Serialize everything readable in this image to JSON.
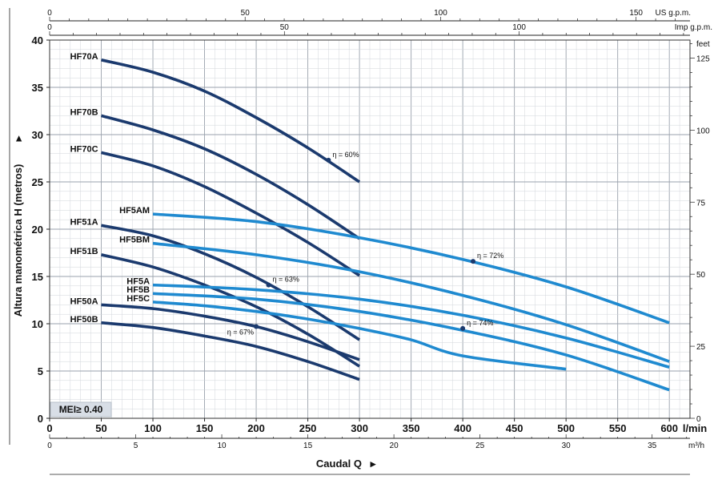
{
  "chart_data": {
    "type": "line",
    "xlabel": "Caudal Q",
    "ylabel": "Altura manométrica H (metros)",
    "xlim": [
      0,
      620
    ],
    "ylim": [
      0,
      40
    ],
    "grid": true,
    "x_ticks": [
      0,
      50,
      100,
      150,
      200,
      250,
      300,
      350,
      400,
      450,
      500,
      550,
      600
    ],
    "x_unit": "l/min",
    "y_ticks": [
      0,
      5,
      10,
      15,
      20,
      25,
      30,
      35,
      40
    ],
    "secondary_axes": {
      "m3h": {
        "unit": "m³/h",
        "ticks": [
          0,
          5,
          10,
          15,
          20,
          25,
          30,
          35
        ]
      },
      "us_gpm": {
        "unit": "US g.p.m.",
        "ticks": [
          0,
          50,
          100,
          150
        ]
      },
      "imp_gpm": {
        "unit": "Imp g.p.m.",
        "ticks": [
          0,
          50,
          100
        ]
      },
      "feet": {
        "unit": "feet",
        "ticks": [
          0,
          25,
          50,
          75,
          100,
          125
        ]
      }
    },
    "series": [
      {
        "name": "HF70A",
        "color": "#1b3a6e",
        "points": [
          [
            50,
            37.9
          ],
          [
            100,
            36.6
          ],
          [
            150,
            34.6
          ],
          [
            200,
            31.8
          ],
          [
            250,
            28.6
          ],
          [
            300,
            25.0
          ]
        ]
      },
      {
        "name": "HF70B",
        "color": "#1b3a6e",
        "points": [
          [
            50,
            32.0
          ],
          [
            100,
            30.5
          ],
          [
            150,
            28.5
          ],
          [
            200,
            25.8
          ],
          [
            250,
            22.6
          ],
          [
            300,
            19.0
          ]
        ]
      },
      {
        "name": "HF70C",
        "color": "#1b3a6e",
        "points": [
          [
            50,
            28.1
          ],
          [
            100,
            26.7
          ],
          [
            150,
            24.5
          ],
          [
            200,
            21.7
          ],
          [
            250,
            18.6
          ],
          [
            300,
            15.1
          ]
        ]
      },
      {
        "name": "HF51A",
        "color": "#1b3a6e",
        "points": [
          [
            50,
            20.4
          ],
          [
            100,
            19.3
          ],
          [
            150,
            17.4
          ],
          [
            200,
            14.9
          ],
          [
            250,
            11.8
          ],
          [
            300,
            8.3
          ]
        ]
      },
      {
        "name": "HF51B",
        "color": "#1b3a6e",
        "points": [
          [
            50,
            17.3
          ],
          [
            100,
            16.0
          ],
          [
            150,
            14.1
          ],
          [
            200,
            11.8
          ],
          [
            250,
            8.9
          ],
          [
            300,
            5.5
          ]
        ]
      },
      {
        "name": "HF50A",
        "color": "#1b3a6e",
        "points": [
          [
            50,
            12.0
          ],
          [
            100,
            11.6
          ],
          [
            150,
            10.8
          ],
          [
            200,
            9.7
          ],
          [
            250,
            8.1
          ],
          [
            300,
            6.2
          ]
        ]
      },
      {
        "name": "HF50B",
        "color": "#1b3a6e",
        "points": [
          [
            50,
            10.1
          ],
          [
            100,
            9.6
          ],
          [
            150,
            8.7
          ],
          [
            200,
            7.6
          ],
          [
            250,
            6.0
          ],
          [
            300,
            4.1
          ]
        ]
      },
      {
        "name": "HF5AM",
        "color": "#1f8ad0",
        "points": [
          [
            100,
            21.6
          ],
          [
            200,
            20.8
          ],
          [
            300,
            19.1
          ],
          [
            400,
            16.8
          ],
          [
            500,
            13.9
          ],
          [
            600,
            10.1
          ]
        ]
      },
      {
        "name": "HF5BM",
        "color": "#1f8ad0",
        "points": [
          [
            100,
            18.5
          ],
          [
            200,
            17.3
          ],
          [
            300,
            15.5
          ],
          [
            400,
            13.0
          ],
          [
            500,
            9.9
          ],
          [
            600,
            6.0
          ]
        ]
      },
      {
        "name": "HF5A",
        "color": "#1f8ad0",
        "points": [
          [
            100,
            14.1
          ],
          [
            200,
            13.6
          ],
          [
            300,
            12.6
          ],
          [
            400,
            10.9
          ],
          [
            500,
            8.5
          ],
          [
            600,
            5.4
          ]
        ]
      },
      {
        "name": "HF5B",
        "color": "#1f8ad0",
        "points": [
          [
            100,
            13.2
          ],
          [
            200,
            12.6
          ],
          [
            300,
            11.3
          ],
          [
            400,
            9.3
          ],
          [
            500,
            6.7
          ],
          [
            600,
            3.0
          ]
        ]
      },
      {
        "name": "HF5C",
        "color": "#1f8ad0",
        "points": [
          [
            100,
            12.3
          ],
          [
            150,
            11.9
          ],
          [
            200,
            11.3
          ],
          [
            250,
            10.5
          ],
          [
            300,
            9.5
          ],
          [
            350,
            8.3
          ],
          [
            400,
            6.6
          ],
          [
            500,
            5.2
          ]
        ]
      }
    ],
    "efficiency_points": [
      {
        "label": "η = 60%",
        "x": 270,
        "y": 27.3
      },
      {
        "label": "η = 72%",
        "x": 410,
        "y": 16.6
      },
      {
        "label": "η = 63%",
        "x": 212,
        "y": 14.1
      },
      {
        "label": "η = 74%",
        "x": 400,
        "y": 9.5
      },
      {
        "label": "η = 67%",
        "x": 200,
        "y": 9.7
      }
    ],
    "annotation": "MEI≥ 0.40",
    "x_arrow": "▸",
    "y_arrow": "▸"
  }
}
